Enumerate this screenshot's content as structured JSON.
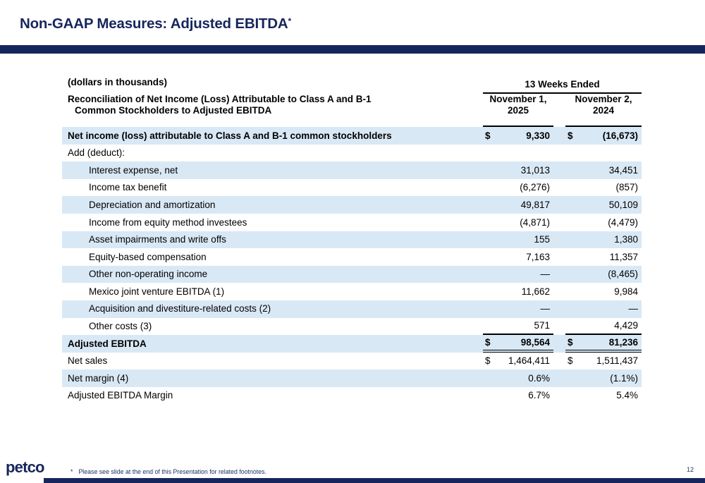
{
  "slide": {
    "title": "Non-GAAP Measures: Adjusted EBITDA",
    "title_asterisk": "*",
    "logo": "petco",
    "footnote_marker": "*",
    "footnote": "Please see slide at the end of this Presentation for related footnotes.",
    "page_number": "12"
  },
  "colors": {
    "navy": "#16265c",
    "row_highlight_blue": "#d9e8f5"
  },
  "table": {
    "units_label": "(dollars in thousands)",
    "period_header": "13 Weeks Ended",
    "row_header_line1": "Reconciliation of Net Income (Loss) Attributable to Class A and B-1",
    "row_header_line2": "Common Stockholders to Adjusted EBITDA",
    "col1": {
      "line1": "November 1,",
      "line2": "2025"
    },
    "col2": {
      "line1": "November 2,",
      "line2": "2024"
    },
    "rows": [
      {
        "label": "Net income (loss) attributable to Class A and B-1 common stockholders",
        "d1": "$",
        "v1": "9,330",
        "d2": "$",
        "v2": "(16,673)"
      },
      {
        "label": "Add (deduct):",
        "d1": "",
        "v1": "",
        "d2": "",
        "v2": ""
      },
      {
        "label": "Interest expense, net",
        "d1": "",
        "v1": "31,013",
        "d2": "",
        "v2": "34,451"
      },
      {
        "label": "Income tax benefit",
        "d1": "",
        "v1": "(6,276)",
        "d2": "",
        "v2": "(857)"
      },
      {
        "label": "Depreciation and amortization",
        "d1": "",
        "v1": "49,817",
        "d2": "",
        "v2": "50,109"
      },
      {
        "label": "Income from equity method investees",
        "d1": "",
        "v1": "(4,871)",
        "d2": "",
        "v2": "(4,479)"
      },
      {
        "label": "Asset impairments and write offs",
        "d1": "",
        "v1": "155",
        "d2": "",
        "v2": "1,380"
      },
      {
        "label": "Equity-based compensation",
        "d1": "",
        "v1": "7,163",
        "d2": "",
        "v2": "11,357"
      },
      {
        "label": "Other non-operating income",
        "d1": "",
        "v1": "—",
        "d2": "",
        "v2": "(8,465)"
      },
      {
        "label": "Mexico joint venture EBITDA (1)",
        "d1": "",
        "v1": "11,662",
        "d2": "",
        "v2": "9,984"
      },
      {
        "label": "Acquisition and divestiture-related costs (2)",
        "d1": "",
        "v1": "—",
        "d2": "",
        "v2": "—"
      },
      {
        "label": "Other costs (3)",
        "d1": "",
        "v1": "571",
        "d2": "",
        "v2": "4,429"
      },
      {
        "label": "Adjusted EBITDA",
        "d1": "$",
        "v1": "98,564",
        "d2": "$",
        "v2": "81,236"
      },
      {
        "label": "Net sales",
        "d1": "$",
        "v1": "1,464,411",
        "d2": "$",
        "v2": "1,511,437"
      },
      {
        "label": "Net margin (4)",
        "d1": "",
        "v1": "0.6%",
        "d2": "",
        "v2": "(1.1%)"
      },
      {
        "label": "Adjusted EBITDA Margin",
        "d1": "",
        "v1": "6.7%",
        "d2": "",
        "v2": "5.4%"
      }
    ]
  }
}
